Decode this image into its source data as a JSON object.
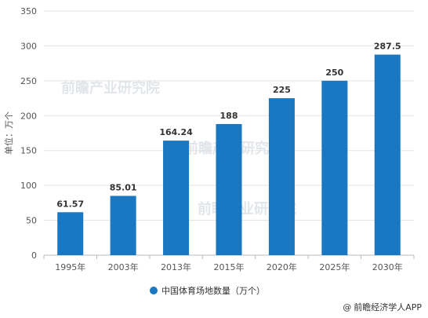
{
  "chart_data": {
    "type": "bar",
    "categories": [
      "1995年",
      "2003年",
      "2013年",
      "2015年",
      "2020年",
      "2025年",
      "2030年"
    ],
    "values": [
      61.57,
      85.01,
      164.24,
      188,
      225,
      250,
      287.5
    ],
    "value_labels": [
      "61.57",
      "85.01",
      "164.24",
      "188",
      "225",
      "250",
      "287.5"
    ],
    "ylabel": "单位：万个",
    "ylim": [
      0,
      350
    ],
    "yticks": [
      0,
      50,
      100,
      150,
      200,
      250,
      300,
      350
    ],
    "grid": true,
    "legend_position": "bottom",
    "series": [
      {
        "name": "中国体育场地数量（万个）",
        "values": [
          61.57,
          85.01,
          164.24,
          188,
          225,
          250,
          287.5
        ]
      }
    ],
    "colors": {
      "bar": "#1a78c2",
      "grid": "#e3e3e3",
      "axis": "#bbbbbb"
    }
  },
  "watermark": "前瞻产业研究院",
  "credit": {
    "at": "@",
    "text": "前瞻经济学人APP"
  }
}
